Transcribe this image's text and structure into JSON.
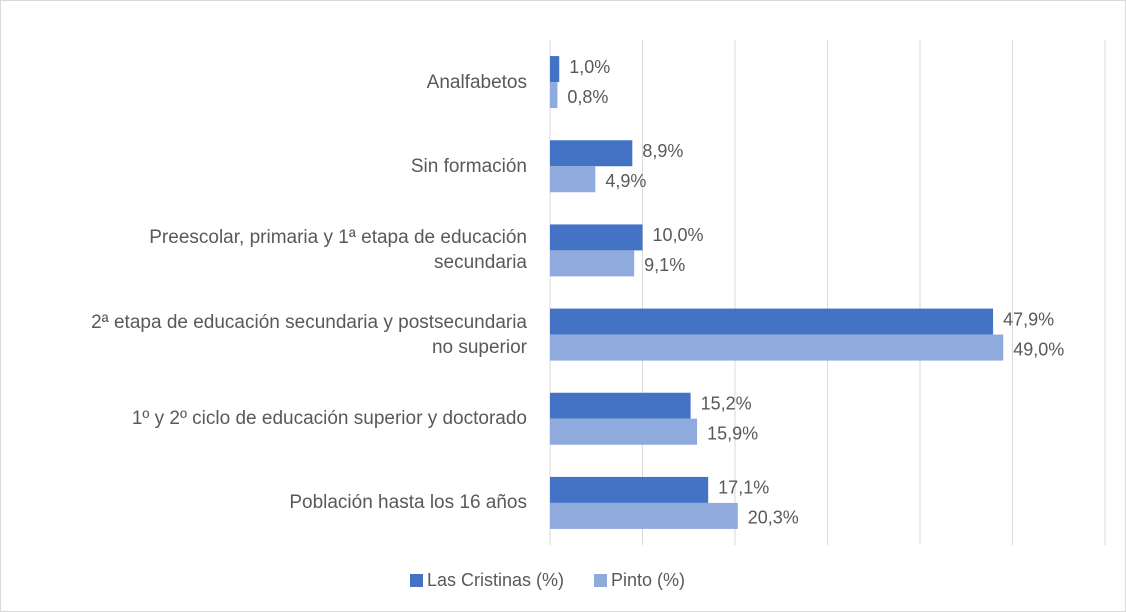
{
  "chart_data": {
    "type": "bar",
    "orientation": "horizontal",
    "categories": [
      "Analfabetos",
      "Sin formación",
      "Preescolar, primaria y 1ª etapa de educación secundaria",
      "2ª etapa de educación secundaria y postsecundaria no superior",
      "1º y 2º ciclo de educación superior y doctorado",
      "Población hasta los 16 años"
    ],
    "series": [
      {
        "name": "Las Cristinas (%)",
        "color": "#4472c4",
        "values": [
          1.0,
          8.9,
          10.0,
          47.9,
          15.2,
          17.1
        ],
        "value_labels": [
          "1,0%",
          "8,9%",
          "10,0%",
          "47,9%",
          "15,2%",
          "17,1%"
        ]
      },
      {
        "name": "Pinto (%)",
        "color": "#8faadc",
        "values": [
          0.8,
          4.9,
          9.1,
          49.0,
          15.9,
          20.3
        ],
        "value_labels": [
          "0,8%",
          "4,9%",
          "9,1%",
          "49,0%",
          "15,9%",
          "20,3%"
        ]
      }
    ],
    "xlim": [
      0,
      60
    ],
    "xticks": [
      0,
      10,
      20,
      30,
      40,
      50,
      60
    ],
    "grid": true,
    "legend": "bottom"
  }
}
